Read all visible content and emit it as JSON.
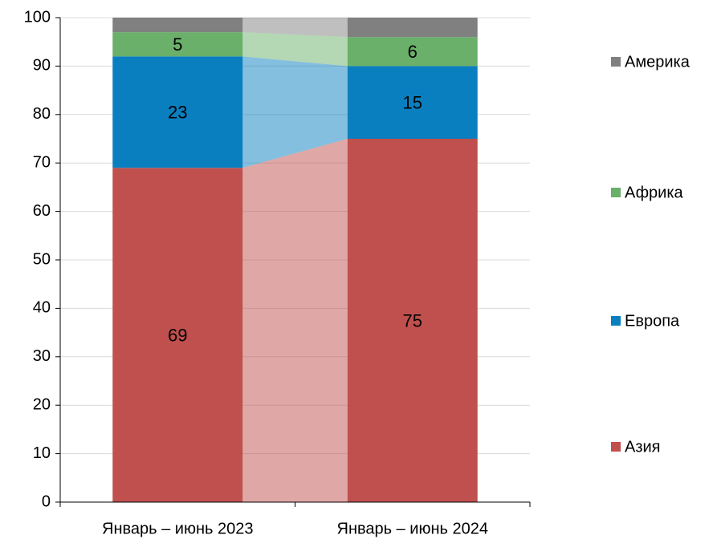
{
  "chart_data": {
    "type": "stacked_bar",
    "categories": [
      "Январь – июнь 2023",
      "Январь – июнь 2024"
    ],
    "series": [
      {
        "name": "Азия",
        "color": "#c0504d",
        "values": [
          69,
          75
        ]
      },
      {
        "name": "Европа",
        "color": "#0a7fc0",
        "values": [
          23,
          15
        ]
      },
      {
        "name": "Африка",
        "color": "#6aaf6a",
        "values": [
          5,
          6
        ]
      },
      {
        "name": "Америка",
        "color": "#808080",
        "values": [
          3,
          4
        ],
        "show_labels": false
      }
    ],
    "ylim": [
      0,
      100
    ],
    "yticks": [
      0,
      10,
      20,
      30,
      40,
      50,
      60,
      70,
      80,
      90,
      100
    ],
    "grid": true,
    "legend": "right"
  }
}
